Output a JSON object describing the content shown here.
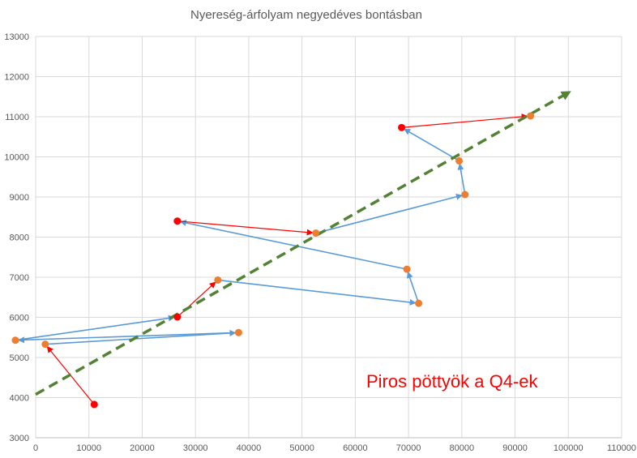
{
  "chart_data": {
    "type": "scatter",
    "title": "Nyereség-árfolyam negyedéves bontásban",
    "xlabel": "",
    "ylabel": "",
    "xlim": [
      0,
      110000
    ],
    "ylim": [
      3000,
      13000
    ],
    "x_ticks": [
      0,
      10000,
      20000,
      30000,
      40000,
      50000,
      60000,
      70000,
      80000,
      90000,
      100000,
      110000
    ],
    "y_ticks": [
      3000,
      4000,
      5000,
      6000,
      7000,
      8000,
      9000,
      10000,
      11000,
      12000,
      13000
    ],
    "grid": true,
    "annotation": "Piros pöttyök a Q4-ek",
    "colors": {
      "q4": "#ff0000",
      "other": "#ed7d31",
      "path_q4": "#ff0000",
      "path_other": "#5b9bd5",
      "trend": "#548235"
    },
    "points": [
      {
        "x": 11000,
        "y": 3830,
        "q4": true
      },
      {
        "x": 1800,
        "y": 5330,
        "q4": false
      },
      {
        "x": 38100,
        "y": 5620,
        "q4": false
      },
      {
        "x": -3800,
        "y": 5430,
        "q4": false
      },
      {
        "x": 26600,
        "y": 6010,
        "q4": true
      },
      {
        "x": 34200,
        "y": 6930,
        "q4": false
      },
      {
        "x": 71900,
        "y": 6350,
        "q4": false
      },
      {
        "x": 69700,
        "y": 7200,
        "q4": false
      },
      {
        "x": 26600,
        "y": 8400,
        "q4": true
      },
      {
        "x": 52600,
        "y": 8100,
        "q4": false
      },
      {
        "x": 80600,
        "y": 9060,
        "q4": false
      },
      {
        "x": 79500,
        "y": 9900,
        "q4": false
      },
      {
        "x": 68700,
        "y": 10730,
        "q4": true
      },
      {
        "x": 92900,
        "y": 11020,
        "q4": false
      }
    ],
    "trendline": {
      "from": [
        0,
        4080
      ],
      "to": [
        100000,
        11600
      ]
    }
  }
}
